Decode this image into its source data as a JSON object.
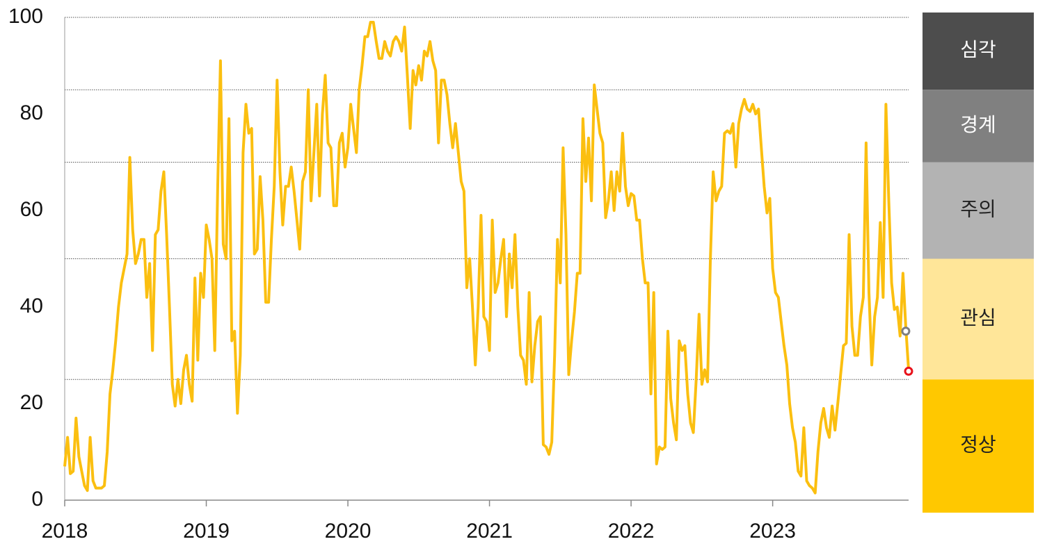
{
  "chart_data": {
    "type": "line",
    "x": [
      2018,
      2018.02,
      2018.04,
      2018.06,
      2018.08,
      2018.1,
      2018.12,
      2018.14,
      2018.16,
      2018.18,
      2018.2,
      2018.22,
      2018.24,
      2018.26,
      2018.28,
      2018.3,
      2018.32,
      2018.34,
      2018.36,
      2018.38,
      2018.4,
      2018.42,
      2018.44,
      2018.46,
      2018.48,
      2018.5,
      2018.52,
      2018.54,
      2018.56,
      2018.58,
      2018.6,
      2018.62,
      2018.64,
      2018.66,
      2018.68,
      2018.7,
      2018.72,
      2018.74,
      2018.76,
      2018.78,
      2018.8,
      2018.82,
      2018.84,
      2018.86,
      2018.88,
      2018.9,
      2018.92,
      2018.94,
      2018.96,
      2018.98,
      2019,
      2019.02,
      2019.04,
      2019.06,
      2019.08,
      2019.1,
      2019.12,
      2019.14,
      2019.16,
      2019.18,
      2019.2,
      2019.22,
      2019.24,
      2019.26,
      2019.28,
      2019.3,
      2019.32,
      2019.34,
      2019.36,
      2019.38,
      2019.4,
      2019.42,
      2019.44,
      2019.46,
      2019.48,
      2019.5,
      2019.52,
      2019.54,
      2019.56,
      2019.58,
      2019.6,
      2019.62,
      2019.64,
      2019.66,
      2019.68,
      2019.7,
      2019.72,
      2019.74,
      2019.76,
      2019.78,
      2019.8,
      2019.82,
      2019.84,
      2019.86,
      2019.88,
      2019.9,
      2019.92,
      2019.94,
      2019.96,
      2019.98,
      2020,
      2020.02,
      2020.04,
      2020.06,
      2020.08,
      2020.1,
      2020.12,
      2020.14,
      2020.16,
      2020.18,
      2020.2,
      2020.22,
      2020.24,
      2020.26,
      2020.28,
      2020.3,
      2020.32,
      2020.34,
      2020.36,
      2020.38,
      2020.4,
      2020.42,
      2020.44,
      2020.46,
      2020.48,
      2020.5,
      2020.52,
      2020.54,
      2020.56,
      2020.58,
      2020.6,
      2020.62,
      2020.64,
      2020.66,
      2020.68,
      2020.7,
      2020.72,
      2020.74,
      2020.76,
      2020.78,
      2020.8,
      2020.82,
      2020.84,
      2020.86,
      2020.88,
      2020.9,
      2020.92,
      2020.94,
      2020.96,
      2020.98,
      2021,
      2021.02,
      2021.04,
      2021.06,
      2021.08,
      2021.1,
      2021.12,
      2021.14,
      2021.16,
      2021.18,
      2021.2,
      2021.22,
      2021.24,
      2021.26,
      2021.28,
      2021.3,
      2021.32,
      2021.34,
      2021.36,
      2021.38,
      2021.4,
      2021.42,
      2021.44,
      2021.46,
      2021.48,
      2021.5,
      2021.52,
      2021.54,
      2021.56,
      2021.58,
      2021.6,
      2021.62,
      2021.64,
      2021.66,
      2021.68,
      2021.7,
      2021.72,
      2021.74,
      2021.76,
      2021.78,
      2021.8,
      2021.82,
      2021.84,
      2021.86,
      2021.88,
      2021.9,
      2021.92,
      2021.94,
      2021.96,
      2021.98,
      2022,
      2022.02,
      2022.04,
      2022.06,
      2022.08,
      2022.1,
      2022.12,
      2022.14,
      2022.16,
      2022.18,
      2022.2,
      2022.22,
      2022.24,
      2022.26,
      2022.28,
      2022.3,
      2022.32,
      2022.34,
      2022.36,
      2022.38,
      2022.4,
      2022.42,
      2022.44,
      2022.46,
      2022.48,
      2022.5,
      2022.52,
      2022.54,
      2022.56,
      2022.58,
      2022.6,
      2022.62,
      2022.64,
      2022.66,
      2022.68,
      2022.7,
      2022.72,
      2022.74,
      2022.76,
      2022.78,
      2022.8,
      2022.82,
      2022.84,
      2022.86,
      2022.88,
      2022.9,
      2022.92,
      2022.94,
      2022.96,
      2022.98,
      2023,
      2023.02,
      2023.04,
      2023.06,
      2023.08,
      2023.1,
      2023.12,
      2023.14,
      2023.16,
      2023.18,
      2023.2,
      2023.22,
      2023.24,
      2023.26,
      2023.28,
      2023.3,
      2023.32,
      2023.34,
      2023.36,
      2023.38,
      2023.4,
      2023.42,
      2023.44,
      2023.46,
      2023.48,
      2023.5,
      2023.52,
      2023.54,
      2023.56,
      2023.58,
      2023.6,
      2023.62,
      2023.64,
      2023.66,
      2023.68,
      2023.7,
      2023.72,
      2023.74,
      2023.76,
      2023.78,
      2023.8,
      2023.82,
      2023.84,
      2023.86,
      2023.88,
      2023.9,
      2023.92,
      2023.94,
      2023.96
    ],
    "values": [
      7,
      13,
      5.5,
      6,
      17,
      9,
      6,
      3,
      2,
      13,
      4,
      2.5,
      2.5,
      2.5,
      3,
      10,
      22,
      27,
      33,
      40,
      45,
      48,
      51,
      71,
      56,
      49,
      51,
      54,
      54,
      42,
      49,
      31,
      55,
      56,
      64,
      68,
      55,
      40,
      24,
      19.5,
      25,
      20,
      27,
      30,
      24,
      20.5,
      46,
      29,
      47,
      42,
      57,
      54,
      50,
      31,
      64,
      91,
      53,
      50,
      79,
      33,
      35,
      18,
      30,
      72,
      82,
      76,
      77,
      51,
      52,
      67,
      58,
      41,
      41,
      54,
      65,
      87,
      68,
      57,
      65,
      65,
      69,
      64,
      58,
      52,
      66,
      68,
      85,
      62,
      72,
      82,
      63,
      80,
      88,
      74,
      73,
      61,
      61,
      74,
      76,
      69,
      73,
      82,
      77,
      72,
      85,
      90,
      96,
      96,
      99,
      99,
      95,
      91.5,
      91.5,
      95,
      93,
      92,
      95,
      96,
      95,
      93,
      98,
      88,
      77,
      89,
      86,
      90,
      87,
      93,
      92,
      95,
      91,
      89,
      74,
      87,
      87,
      84,
      78,
      73,
      78,
      72,
      66,
      64,
      44,
      50,
      40,
      28,
      40,
      59,
      38,
      37,
      31,
      58,
      43,
      45,
      50,
      54,
      38,
      51,
      44,
      55,
      40,
      30,
      29,
      24,
      43,
      24.5,
      32,
      37,
      38,
      11.5,
      11,
      9.5,
      12,
      30,
      54,
      45,
      73,
      55,
      26,
      33,
      39,
      47,
      47,
      79,
      66,
      75,
      62,
      86,
      81,
      76,
      74,
      58.5,
      62,
      68,
      60,
      68,
      64,
      76,
      65,
      61,
      63.5,
      63,
      58,
      58,
      50,
      45,
      45,
      22,
      43,
      7.5,
      11,
      10.5,
      11,
      35,
      21,
      16,
      12.5,
      33,
      31,
      32,
      22,
      16,
      14,
      25,
      38.5,
      24,
      27,
      24.5,
      50,
      68,
      62,
      64,
      65,
      76,
      76.5,
      76,
      78,
      69,
      78,
      81,
      83,
      81,
      80.5,
      82,
      80,
      81,
      73,
      65,
      59.5,
      62.5,
      48,
      43,
      42,
      37,
      32,
      28,
      20,
      15,
      12,
      6,
      5,
      15,
      4,
      3,
      2.5,
      1.5,
      10,
      16,
      19,
      15,
      13,
      19.5,
      14.5,
      20,
      26,
      32,
      32.5,
      55,
      36,
      30,
      30,
      38,
      42,
      74,
      43,
      28,
      38,
      42,
      57.5,
      42,
      82,
      62,
      45,
      39.5,
      40,
      34,
      47,
      36,
      27
    ],
    "color": "#fbbf10",
    "markers": [
      {
        "x": 2023.94,
        "value": 35,
        "color": "#7f7f7f"
      },
      {
        "x": 2023.96,
        "value": 26.7,
        "color": "#e8121b"
      }
    ],
    "xlim": [
      2018,
      2023.96
    ],
    "xticks": [
      2018,
      2019,
      2020,
      2021,
      2022,
      2023
    ],
    "ylim": [
      0,
      100
    ],
    "yticks": [
      0,
      20,
      40,
      60,
      80,
      100
    ],
    "bands": [
      {
        "label": "심각",
        "from": 85,
        "to": 100,
        "color": "#4d4d4d",
        "text_color": "#ffffff"
      },
      {
        "label": "경계",
        "from": 70,
        "to": 85,
        "color": "#808080",
        "text_color": "#ffffff"
      },
      {
        "label": "주의",
        "from": 50,
        "to": 70,
        "color": "#b3b3b3",
        "text_color": "#222222"
      },
      {
        "label": "관심",
        "from": 25,
        "to": 50,
        "color": "#ffe699",
        "text_color": "#222222"
      },
      {
        "label": "정상",
        "from": 0,
        "to": 25,
        "color": "#ffc800",
        "text_color": "#222222"
      }
    ]
  }
}
